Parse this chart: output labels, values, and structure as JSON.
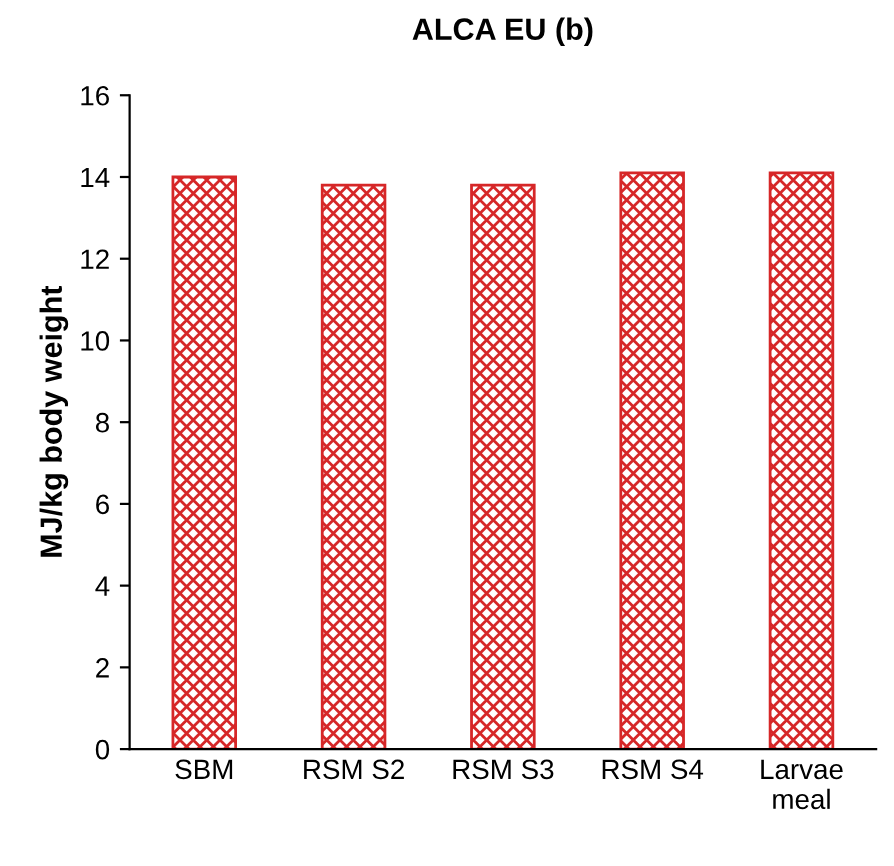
{
  "chart_data": {
    "type": "bar",
    "title": "ALCA EU (b)",
    "ylabel": "MJ/kg body weight",
    "categories": [
      "SBM",
      "RSM S2",
      "RSM S3",
      "RSM S4",
      "Larvae\nmeal"
    ],
    "series": [
      {
        "color": "#d62728",
        "values": [
          14.0,
          13.8,
          13.8,
          14.1,
          14.1
        ]
      }
    ],
    "ylim": [
      0,
      16
    ],
    "yticks": [
      0,
      2,
      4,
      6,
      8,
      10,
      12,
      14,
      16
    ],
    "grid": false
  }
}
